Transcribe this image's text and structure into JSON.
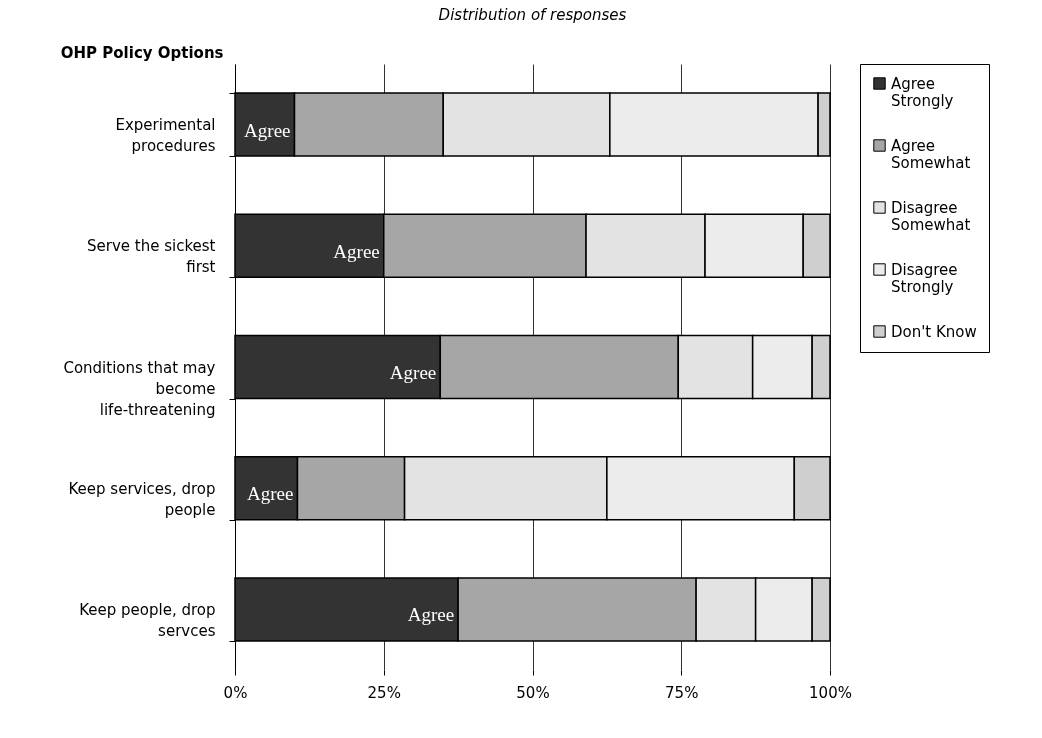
{
  "chart_data": {
    "type": "bar",
    "orientation": "horizontal",
    "stacked": true,
    "title": "Distribution of responses",
    "ylabel": "OHP Policy Options",
    "categories": [
      "Experimental procedures",
      "Serve the sickest first",
      "Conditions that may become life-threatening",
      "Keep services, drop people",
      "Keep people, drop servces"
    ],
    "series": [
      {
        "name": "Agree Strongly",
        "color": "#333333",
        "values": [
          10,
          25,
          34.5,
          10.5,
          37.5
        ]
      },
      {
        "name": "Agree Somewhat",
        "color": "#a6a6a6",
        "values": [
          25,
          34,
          40,
          18,
          40
        ]
      },
      {
        "name": "Disagree Somewhat",
        "color": "#e3e3e3",
        "values": [
          28,
          20,
          12.5,
          34,
          10
        ]
      },
      {
        "name": "Disagree Strongly",
        "color": "#ececec",
        "values": [
          35,
          16.5,
          10,
          31.5,
          9.5
        ]
      },
      {
        "name": "Don't Know",
        "color": "#cfcfcf",
        "values": [
          2,
          4.5,
          3,
          6,
          3
        ]
      }
    ],
    "xlim": [
      0,
      100
    ],
    "xticks": [
      {
        "value": 0,
        "label": "0%"
      },
      {
        "value": 25,
        "label": "25%"
      },
      {
        "value": 50,
        "label": "50%"
      },
      {
        "value": 75,
        "label": "75%"
      },
      {
        "value": 100,
        "label": "100%"
      }
    ],
    "grid": "x",
    "legend": "right",
    "annotations": [
      "Agree",
      "Agree",
      "Agree",
      "Agree",
      "Agree"
    ]
  }
}
